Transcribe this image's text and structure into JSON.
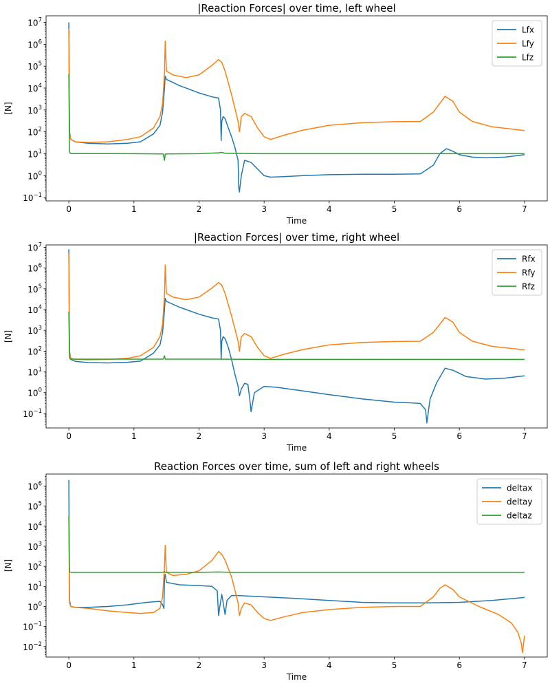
{
  "chart_data": [
    {
      "type": "line",
      "title": "|Reaction Forces| over time, left wheel",
      "xlabel": "Time",
      "ylabel": "[N]",
      "yscale": "log",
      "xlim": [
        -0.35,
        7.35
      ],
      "ylim": [
        0.07,
        20000000
      ],
      "xticks": [
        0,
        1,
        2,
        3,
        4,
        5,
        6,
        7
      ],
      "yticks": [
        {
          "value": 0.1,
          "exp": "−1"
        },
        {
          "value": 1,
          "exp": "0"
        },
        {
          "value": 10,
          "exp": "1"
        },
        {
          "value": 100,
          "exp": "2"
        },
        {
          "value": 1000,
          "exp": "3"
        },
        {
          "value": 10000,
          "exp": "4"
        },
        {
          "value": 100000,
          "exp": "5"
        },
        {
          "value": 1000000,
          "exp": "6"
        },
        {
          "value": 10000000,
          "exp": "7"
        }
      ],
      "legend_position": "top-right",
      "series": [
        {
          "name": "Lfx",
          "color": "#1f77b4",
          "x": [
            0,
            0.01,
            0.03,
            0.1,
            0.3,
            0.6,
            0.9,
            1.1,
            1.3,
            1.4,
            1.44,
            1.47,
            1.48,
            1.5,
            1.7,
            2.0,
            2.2,
            2.3,
            2.33,
            2.34,
            2.35,
            2.37,
            2.4,
            2.45,
            2.5,
            2.55,
            2.6,
            2.61,
            2.62,
            2.65,
            2.7,
            2.8,
            3.0,
            3.1,
            3.3,
            3.6,
            4.0,
            4.5,
            5.0,
            5.4,
            5.6,
            5.7,
            5.8,
            5.9,
            6.0,
            6.2,
            6.4,
            6.7,
            7.0
          ],
          "y": [
            10000000,
            100,
            45,
            35,
            30,
            28,
            30,
            35,
            80,
            200,
            800,
            10000,
            35000,
            25000,
            13000,
            6000,
            4000,
            3500,
            1000,
            40,
            300,
            500,
            400,
            150,
            60,
            20,
            5,
            0.3,
            0.18,
            1,
            5,
            4,
            1,
            0.85,
            0.9,
            1.0,
            1.1,
            1.15,
            1.15,
            1.2,
            3,
            10,
            17,
            13,
            9,
            7,
            6.5,
            7,
            9
          ]
        },
        {
          "name": "Lfy",
          "color": "#ff7f0e",
          "x": [
            0,
            0.01,
            0.03,
            0.1,
            0.3,
            0.6,
            0.9,
            1.1,
            1.3,
            1.4,
            1.44,
            1.47,
            1.48,
            1.5,
            1.6,
            1.8,
            2.0,
            2.2,
            2.3,
            2.35,
            2.4,
            2.5,
            2.6,
            2.62,
            2.65,
            2.7,
            2.8,
            2.9,
            3.0,
            3.1,
            3.3,
            3.6,
            4.0,
            4.5,
            5.0,
            5.4,
            5.6,
            5.7,
            5.78,
            5.9,
            6.0,
            6.2,
            6.5,
            7.0
          ],
          "y": [
            5000000,
            80,
            45,
            35,
            33,
            35,
            45,
            60,
            150,
            500,
            2000,
            50000,
            1400000,
            60000,
            40000,
            30000,
            40000,
            110000,
            200000,
            150000,
            60000,
            5000,
            300,
            100,
            500,
            700,
            500,
            150,
            60,
            45,
            70,
            120,
            200,
            260,
            290,
            300,
            800,
            2000,
            4200,
            2500,
            800,
            300,
            170,
            115
          ]
        },
        {
          "name": "Lfz",
          "color": "#2ca02c",
          "x": [
            0,
            0.01,
            0.02,
            0.05,
            0.5,
            1.0,
            1.45,
            1.47,
            1.48,
            1.5,
            2.0,
            2.3,
            2.35,
            2.4,
            3.0,
            4.0,
            5.0,
            6.0,
            7.0
          ],
          "y": [
            45000,
            13,
            10.5,
            10.2,
            10.1,
            10,
            9.8,
            5,
            9.6,
            9.8,
            10,
            11,
            11.5,
            10.5,
            10,
            10,
            10,
            10,
            10
          ]
        }
      ]
    },
    {
      "type": "line",
      "title": "|Reaction Forces| over time, right wheel",
      "xlabel": "Time",
      "ylabel": "[N]",
      "yscale": "log",
      "xlim": [
        -0.35,
        7.35
      ],
      "ylim": [
        0.02,
        13000000
      ],
      "xticks": [
        0,
        1,
        2,
        3,
        4,
        5,
        6,
        7
      ],
      "yticks": [
        {
          "value": 0.1,
          "exp": "−1"
        },
        {
          "value": 1,
          "exp": "0"
        },
        {
          "value": 10,
          "exp": "1"
        },
        {
          "value": 100,
          "exp": "2"
        },
        {
          "value": 1000,
          "exp": "3"
        },
        {
          "value": 10000,
          "exp": "4"
        },
        {
          "value": 100000,
          "exp": "5"
        },
        {
          "value": 1000000,
          "exp": "6"
        },
        {
          "value": 10000000,
          "exp": "7"
        }
      ],
      "legend_position": "top-right",
      "series": [
        {
          "name": "Rfx",
          "color": "#1f77b4",
          "x": [
            0,
            0.01,
            0.03,
            0.1,
            0.3,
            0.6,
            0.9,
            1.1,
            1.3,
            1.4,
            1.44,
            1.47,
            1.48,
            1.5,
            1.7,
            2.0,
            2.2,
            2.3,
            2.33,
            2.34,
            2.35,
            2.37,
            2.4,
            2.45,
            2.5,
            2.55,
            2.6,
            2.62,
            2.65,
            2.7,
            2.75,
            2.78,
            2.8,
            2.85,
            3.0,
            3.2,
            3.6,
            4.0,
            4.5,
            5.0,
            5.3,
            5.4,
            5.48,
            5.5,
            5.52,
            5.55,
            5.65,
            5.78,
            5.9,
            6.1,
            6.4,
            6.7,
            7.0
          ],
          "y": [
            8000000,
            100,
            40,
            32,
            28,
            27,
            29,
            33,
            80,
            200,
            800,
            10000,
            35000,
            25000,
            13000,
            6000,
            4000,
            3500,
            1000,
            40,
            300,
            500,
            400,
            150,
            40,
            8,
            2,
            0.7,
            1.5,
            2.8,
            2.5,
            0.5,
            0.12,
            1,
            2,
            1.8,
            1.2,
            0.8,
            0.5,
            0.35,
            0.32,
            0.3,
            0.15,
            0.035,
            0.1,
            0.5,
            3,
            15,
            12,
            6,
            4.5,
            5,
            6.5
          ]
        },
        {
          "name": "Rfy",
          "color": "#ff7f0e",
          "x": [
            0,
            0.01,
            0.03,
            0.1,
            0.3,
            0.6,
            0.9,
            1.1,
            1.3,
            1.4,
            1.44,
            1.47,
            1.48,
            1.5,
            1.6,
            1.8,
            2.0,
            2.2,
            2.3,
            2.35,
            2.4,
            2.5,
            2.6,
            2.62,
            2.65,
            2.7,
            2.8,
            2.9,
            3.0,
            3.1,
            3.3,
            3.6,
            4.0,
            4.5,
            5.0,
            5.4,
            5.6,
            5.7,
            5.78,
            5.9,
            6.0,
            6.2,
            6.5,
            7.0
          ],
          "y": [
            5000000,
            80,
            45,
            40,
            38,
            40,
            45,
            60,
            150,
            500,
            2000,
            50000,
            1400000,
            60000,
            40000,
            30000,
            40000,
            110000,
            200000,
            150000,
            60000,
            5000,
            300,
            100,
            500,
            700,
            500,
            150,
            60,
            45,
            70,
            120,
            200,
            260,
            290,
            300,
            800,
            2000,
            4200,
            2500,
            800,
            300,
            170,
            115
          ]
        },
        {
          "name": "Rfz",
          "color": "#2ca02c",
          "x": [
            0,
            0.01,
            0.02,
            0.05,
            0.5,
            1.0,
            1.45,
            1.47,
            1.48,
            1.5,
            2.0,
            2.3,
            3.0,
            4.0,
            5.0,
            6.0,
            7.0
          ],
          "y": [
            8000,
            50,
            42,
            41,
            41,
            41,
            41,
            60,
            41,
            41,
            41,
            41,
            40,
            40,
            40,
            40,
            40
          ]
        }
      ]
    },
    {
      "type": "line",
      "title": "Reaction Forces over time, sum of left and right wheels",
      "xlabel": "Time",
      "ylabel": "[N]",
      "yscale": "log",
      "xlim": [
        -0.35,
        7.35
      ],
      "ylim": [
        0.003,
        4000000
      ],
      "xticks": [
        0,
        1,
        2,
        3,
        4,
        5,
        6,
        7
      ],
      "yticks": [
        {
          "value": 0.01,
          "exp": "−2"
        },
        {
          "value": 0.1,
          "exp": "−1"
        },
        {
          "value": 1,
          "exp": "0"
        },
        {
          "value": 10,
          "exp": "1"
        },
        {
          "value": 100,
          "exp": "2"
        },
        {
          "value": 1000,
          "exp": "3"
        },
        {
          "value": 10000,
          "exp": "4"
        },
        {
          "value": 100000,
          "exp": "5"
        },
        {
          "value": 1000000,
          "exp": "6"
        }
      ],
      "legend_position": "top-right",
      "series": [
        {
          "name": "deltax",
          "color": "#1f77b4",
          "x": [
            0,
            0.01,
            0.03,
            0.1,
            0.3,
            0.6,
            0.9,
            1.2,
            1.4,
            1.44,
            1.46,
            1.47,
            1.48,
            1.5,
            1.7,
            2.0,
            2.2,
            2.28,
            2.3,
            2.32,
            2.35,
            2.38,
            2.4,
            2.43,
            2.5,
            2.6,
            3.0,
            3.5,
            4.0,
            4.5,
            5.0,
            5.5,
            6.0,
            6.5,
            7.0
          ],
          "y": [
            2000000,
            2,
            1,
            0.9,
            0.9,
            1.0,
            1.2,
            1.6,
            1.8,
            1.2,
            0.8,
            30,
            40,
            16,
            12,
            11,
            10,
            6,
            0.35,
            1,
            4,
            1,
            0.4,
            2,
            3.5,
            3.5,
            3,
            2.5,
            2,
            1.6,
            1.5,
            1.5,
            1.6,
            2,
            2.8
          ]
        },
        {
          "name": "deltay",
          "color": "#ff7f0e",
          "x": [
            0,
            0.01,
            0.03,
            0.1,
            0.3,
            0.6,
            0.9,
            1.1,
            1.3,
            1.4,
            1.44,
            1.47,
            1.48,
            1.5,
            1.6,
            1.8,
            2.0,
            2.2,
            2.3,
            2.35,
            2.4,
            2.5,
            2.6,
            2.62,
            2.65,
            2.7,
            2.8,
            2.9,
            3.0,
            3.1,
            3.3,
            3.6,
            4.0,
            4.5,
            5.0,
            5.4,
            5.6,
            5.7,
            5.78,
            5.9,
            6.0,
            6.3,
            6.6,
            6.8,
            6.9,
            6.95,
            6.97,
            7.0
          ],
          "y": [
            30000,
            1.5,
            1.0,
            0.9,
            0.8,
            0.6,
            0.5,
            0.45,
            0.5,
            0.8,
            3,
            100,
            1100,
            50,
            35,
            40,
            60,
            200,
            550,
            400,
            200,
            30,
            1.5,
            0.35,
            0.8,
            1.5,
            1.2,
            0.5,
            0.25,
            0.2,
            0.3,
            0.5,
            0.7,
            0.9,
            1,
            1,
            3,
            8,
            12,
            7,
            3,
            1,
            0.4,
            0.15,
            0.05,
            0.015,
            0.005,
            0.035
          ]
        },
        {
          "name": "deltaz",
          "color": "#2ca02c",
          "x": [
            0,
            0.01,
            0.02,
            0.05,
            0.5,
            1.0,
            1.45,
            1.47,
            1.48,
            1.5,
            2.0,
            2.3,
            2.5,
            3.0,
            4.0,
            5.0,
            6.0,
            7.0
          ],
          "y": [
            35000,
            55,
            51,
            50,
            50,
            50,
            50,
            55,
            50,
            50,
            50,
            52,
            50,
            50,
            50,
            50,
            50,
            50
          ]
        }
      ]
    }
  ]
}
